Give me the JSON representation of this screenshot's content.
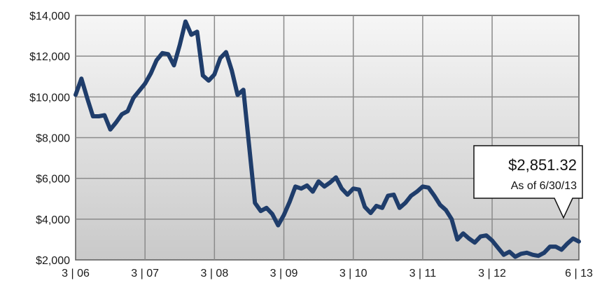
{
  "chart_data": {
    "type": "line",
    "title": "",
    "xlabel": "",
    "ylabel": "",
    "grid": true,
    "x_ticks": [
      "3 | 06",
      "3 | 07",
      "3 | 08",
      "3 | 09",
      "3 | 10",
      "3 | 11",
      "3 | 12",
      "6 | 13"
    ],
    "y_ticks": [
      "$2,000",
      "$4,000",
      "$6,000",
      "$8,000",
      "$10,000",
      "$12,000",
      "$14,000"
    ],
    "ylim": [
      2000,
      14000
    ],
    "xlim": [
      "2006-03",
      "2013-06"
    ],
    "series": [
      {
        "color": "#1f3d6b",
        "x": [
          "2006-03",
          "2006-04",
          "2006-05",
          "2006-06",
          "2006-07",
          "2006-08",
          "2006-09",
          "2006-10",
          "2006-11",
          "2006-12",
          "2007-01",
          "2007-02",
          "2007-03",
          "2007-04",
          "2007-05",
          "2007-06",
          "2007-07",
          "2007-08",
          "2007-09",
          "2007-10",
          "2007-11",
          "2007-12",
          "2008-01",
          "2008-02",
          "2008-03",
          "2008-04",
          "2008-05",
          "2008-06",
          "2008-07",
          "2008-08",
          "2008-09",
          "2008-10",
          "2008-11",
          "2008-12",
          "2009-01",
          "2009-02",
          "2009-03",
          "2009-04",
          "2009-05",
          "2009-06",
          "2009-07",
          "2009-08",
          "2009-09",
          "2009-10",
          "2009-11",
          "2009-12",
          "2010-01",
          "2010-02",
          "2010-03",
          "2010-04",
          "2010-05",
          "2010-06",
          "2010-07",
          "2010-08",
          "2010-09",
          "2010-10",
          "2010-11",
          "2010-12",
          "2011-01",
          "2011-02",
          "2011-03",
          "2011-04",
          "2011-05",
          "2011-06",
          "2011-07",
          "2011-08",
          "2011-09",
          "2011-10",
          "2011-11",
          "2011-12",
          "2012-01",
          "2012-02",
          "2012-03",
          "2012-04",
          "2012-05",
          "2012-06",
          "2012-07",
          "2012-08",
          "2012-09",
          "2012-10",
          "2012-11",
          "2012-12",
          "2013-01",
          "2013-02",
          "2013-03",
          "2013-04",
          "2013-05",
          "2013-06"
        ],
        "values": [
          10100,
          10900,
          9950,
          9050,
          9050,
          9100,
          8400,
          8750,
          9150,
          9300,
          9950,
          10300,
          10650,
          11150,
          11800,
          12150,
          12100,
          11550,
          12550,
          13700,
          13050,
          13200,
          11050,
          10800,
          11100,
          11900,
          12200,
          11300,
          10100,
          10350,
          7600,
          4800,
          4400,
          4550,
          4250,
          3700,
          4200,
          4850,
          5600,
          5500,
          5650,
          5350,
          5850,
          5600,
          5800,
          6050,
          5500,
          5200,
          5500,
          5450,
          4600,
          4300,
          4650,
          4550,
          5150,
          5200,
          4550,
          4800,
          5150,
          5350,
          5600,
          5550,
          5150,
          4700,
          4450,
          4000,
          3000,
          3300,
          3050,
          2850,
          3150,
          3200,
          2950,
          2600,
          2250,
          2400,
          2150,
          2300,
          2350,
          2250,
          2200,
          2350,
          2650,
          2650,
          2500,
          2800,
          3050,
          2900
        ]
      }
    ],
    "callout": {
      "value": "$2,851.32",
      "date": "As of 6/30/13"
    }
  }
}
